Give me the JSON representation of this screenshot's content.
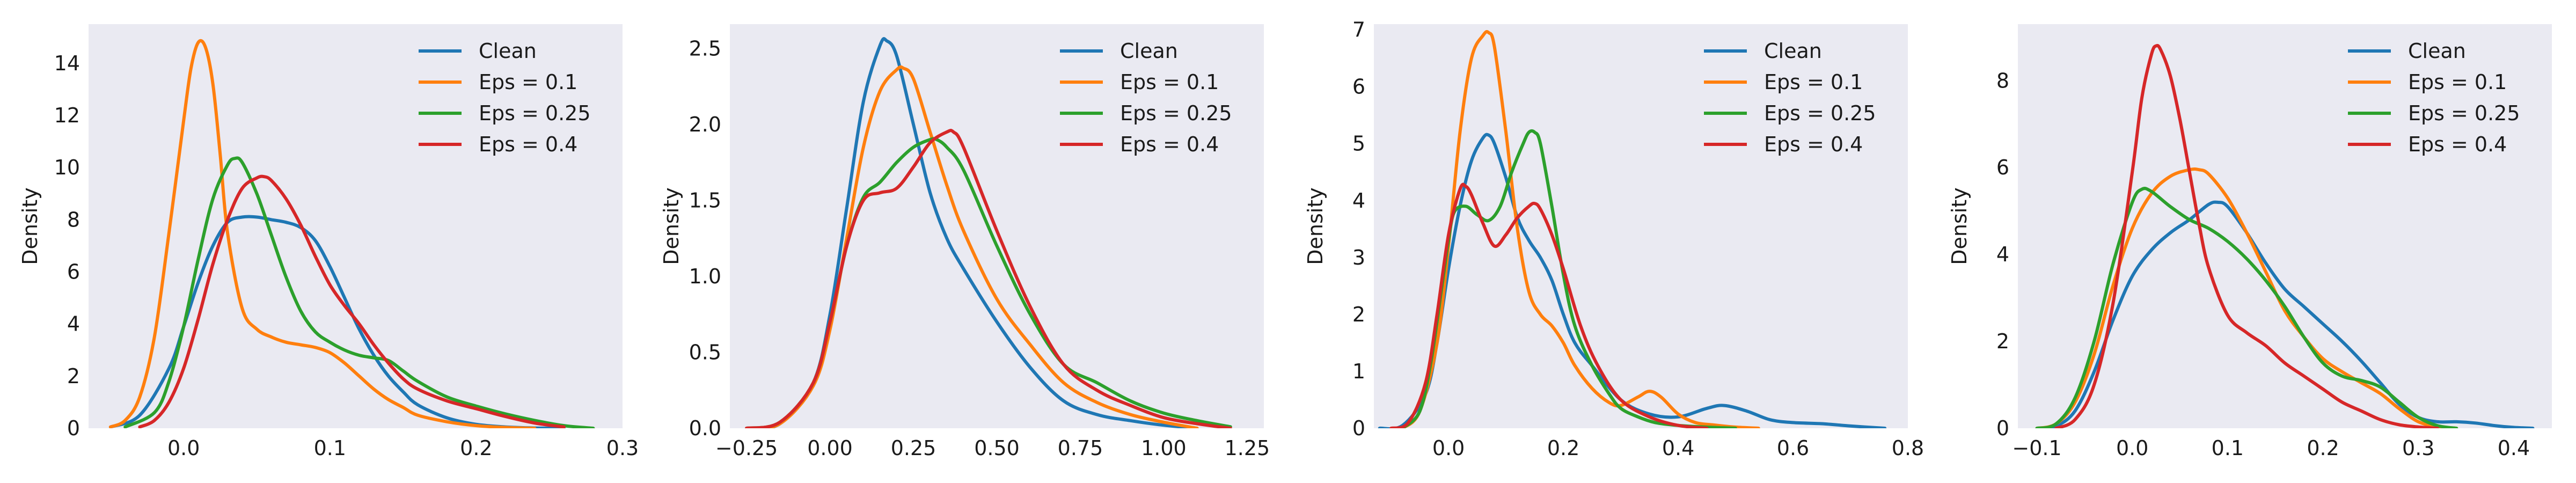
{
  "colors": {
    "Clean": "#1f77b4",
    "Eps = 0.1": "#ff7f0e",
    "Eps = 0.25": "#2ca02c",
    "Eps = 0.4": "#d62728",
    "plot_background": "#eaeaf2"
  },
  "chart_data": [
    {
      "type": "line",
      "ylabel": "Density",
      "xlim": [
        -0.065,
        0.3
      ],
      "ylim": [
        0,
        15.5
      ],
      "xticks": [
        0.0,
        0.1,
        0.2,
        0.3
      ],
      "xtick_labels": [
        "0.0",
        "0.1",
        "0.2",
        "0.3"
      ],
      "yticks": [
        0,
        2,
        4,
        6,
        8,
        10,
        12,
        14
      ],
      "ytick_labels": [
        "0",
        "2",
        "4",
        "6",
        "8",
        "10",
        "12",
        "14"
      ],
      "grid": false,
      "legend": "top-right",
      "series": [
        {
          "name": "Clean",
          "x": [
            -0.05,
            -0.03,
            -0.01,
            0.0,
            0.01,
            0.02,
            0.03,
            0.04,
            0.05,
            0.06,
            0.07,
            0.08,
            0.09,
            0.1,
            0.11,
            0.12,
            0.13,
            0.14,
            0.15,
            0.16,
            0.18,
            0.2,
            0.22,
            0.24,
            0.26
          ],
          "y": [
            0.05,
            0.5,
            2.3,
            3.9,
            5.6,
            7.0,
            7.9,
            8.1,
            8.1,
            8.0,
            7.9,
            7.7,
            7.2,
            6.2,
            5.0,
            3.8,
            2.8,
            2.0,
            1.4,
            0.9,
            0.4,
            0.15,
            0.05,
            0.01,
            0.0
          ]
        },
        {
          "name": "Eps = 0.1",
          "x": [
            -0.05,
            -0.04,
            -0.03,
            -0.02,
            -0.01,
            0.0,
            0.005,
            0.01,
            0.015,
            0.02,
            0.025,
            0.03,
            0.04,
            0.05,
            0.06,
            0.07,
            0.08,
            0.09,
            0.1,
            0.11,
            0.12,
            0.13,
            0.14,
            0.15,
            0.16,
            0.18,
            0.2,
            0.22,
            0.24
          ],
          "y": [
            0.05,
            0.3,
            1.2,
            3.5,
            7.5,
            11.8,
            13.8,
            14.8,
            14.6,
            13.2,
            10.5,
            7.5,
            4.6,
            3.8,
            3.5,
            3.3,
            3.2,
            3.1,
            2.9,
            2.5,
            2.0,
            1.5,
            1.1,
            0.8,
            0.5,
            0.25,
            0.1,
            0.03,
            0.0
          ]
        },
        {
          "name": "Eps = 0.25",
          "x": [
            -0.04,
            -0.02,
            -0.01,
            0.0,
            0.01,
            0.02,
            0.03,
            0.035,
            0.04,
            0.05,
            0.06,
            0.07,
            0.08,
            0.09,
            0.1,
            0.11,
            0.12,
            0.13,
            0.14,
            0.15,
            0.16,
            0.18,
            0.2,
            0.22,
            0.24,
            0.26,
            0.28
          ],
          "y": [
            0.05,
            0.6,
            1.8,
            3.9,
            6.5,
            8.8,
            10.1,
            10.35,
            10.2,
            9.0,
            7.4,
            5.8,
            4.5,
            3.7,
            3.3,
            3.0,
            2.8,
            2.7,
            2.6,
            2.2,
            1.8,
            1.2,
            0.85,
            0.55,
            0.3,
            0.1,
            0.0
          ]
        },
        {
          "name": "Eps = 0.4",
          "x": [
            -0.03,
            -0.02,
            -0.01,
            0.0,
            0.01,
            0.02,
            0.03,
            0.04,
            0.05,
            0.055,
            0.06,
            0.07,
            0.08,
            0.09,
            0.1,
            0.11,
            0.12,
            0.13,
            0.14,
            0.15,
            0.16,
            0.18,
            0.2,
            0.22,
            0.24,
            0.26
          ],
          "y": [
            0.05,
            0.3,
            1.0,
            2.3,
            4.2,
            6.3,
            8.0,
            9.2,
            9.6,
            9.65,
            9.5,
            8.8,
            7.8,
            6.6,
            5.5,
            4.7,
            4.0,
            3.2,
            2.5,
            1.9,
            1.5,
            1.05,
            0.75,
            0.45,
            0.2,
            0.05
          ]
        }
      ]
    },
    {
      "type": "line",
      "ylabel": "Density",
      "xlim": [
        -0.3,
        1.3
      ],
      "ylim": [
        0,
        2.66
      ],
      "xticks": [
        -0.25,
        0.0,
        0.25,
        0.5,
        0.75,
        1.0,
        1.25
      ],
      "xtick_labels": [
        "−0.25",
        "0.00",
        "0.25",
        "0.50",
        "0.75",
        "1.00",
        "1.25"
      ],
      "yticks": [
        0.0,
        0.5,
        1.0,
        1.5,
        2.0,
        2.5
      ],
      "ytick_labels": [
        "0.0",
        "0.5",
        "1.0",
        "1.5",
        "2.0",
        "2.5"
      ],
      "grid": false,
      "legend": "top-right",
      "series": [
        {
          "name": "Clean",
          "x": [
            -0.25,
            -0.15,
            -0.05,
            0.0,
            0.05,
            0.1,
            0.15,
            0.17,
            0.2,
            0.25,
            0.3,
            0.35,
            0.4,
            0.5,
            0.6,
            0.7,
            0.8,
            0.9,
            1.0,
            1.1
          ],
          "y": [
            0.0,
            0.03,
            0.3,
            0.75,
            1.45,
            2.15,
            2.52,
            2.55,
            2.45,
            2.0,
            1.55,
            1.25,
            1.05,
            0.7,
            0.4,
            0.18,
            0.09,
            0.05,
            0.02,
            0.0
          ]
        },
        {
          "name": "Eps = 0.1",
          "x": [
            -0.25,
            -0.15,
            -0.05,
            0.0,
            0.05,
            0.1,
            0.15,
            0.2,
            0.22,
            0.25,
            0.3,
            0.35,
            0.4,
            0.5,
            0.6,
            0.7,
            0.8,
            0.9,
            1.0,
            1.1
          ],
          "y": [
            0.0,
            0.03,
            0.28,
            0.65,
            1.25,
            1.85,
            2.22,
            2.36,
            2.37,
            2.3,
            1.95,
            1.6,
            1.3,
            0.85,
            0.55,
            0.3,
            0.17,
            0.09,
            0.04,
            0.0
          ]
        },
        {
          "name": "Eps = 0.25",
          "x": [
            -0.25,
            -0.15,
            -0.05,
            0.0,
            0.05,
            0.1,
            0.15,
            0.2,
            0.25,
            0.3,
            0.32,
            0.35,
            0.4,
            0.5,
            0.6,
            0.7,
            0.8,
            0.9,
            1.0,
            1.1,
            1.2
          ],
          "y": [
            0.0,
            0.04,
            0.3,
            0.7,
            1.2,
            1.52,
            1.62,
            1.75,
            1.85,
            1.9,
            1.9,
            1.85,
            1.7,
            1.2,
            0.75,
            0.42,
            0.3,
            0.18,
            0.1,
            0.05,
            0.01
          ]
        },
        {
          "name": "Eps = 0.4",
          "x": [
            -0.25,
            -0.15,
            -0.05,
            0.0,
            0.05,
            0.1,
            0.15,
            0.2,
            0.25,
            0.3,
            0.35,
            0.37,
            0.4,
            0.5,
            0.6,
            0.7,
            0.8,
            0.9,
            1.0,
            1.1,
            1.2
          ],
          "y": [
            0.0,
            0.04,
            0.3,
            0.7,
            1.2,
            1.5,
            1.55,
            1.58,
            1.72,
            1.88,
            1.95,
            1.95,
            1.85,
            1.3,
            0.8,
            0.42,
            0.25,
            0.15,
            0.07,
            0.03,
            0.0
          ]
        }
      ]
    },
    {
      "type": "line",
      "ylabel": "Density",
      "xlim": [
        -0.13,
        0.8
      ],
      "ylim": [
        0,
        7.1
      ],
      "xticks": [
        0.0,
        0.2,
        0.4,
        0.6,
        0.8
      ],
      "xtick_labels": [
        "0.0",
        "0.2",
        "0.4",
        "0.6",
        "0.8"
      ],
      "yticks": [
        0,
        1,
        2,
        3,
        4,
        5,
        6,
        7
      ],
      "ytick_labels": [
        "0",
        "1",
        "2",
        "3",
        "4",
        "5",
        "6",
        "7"
      ],
      "grid": false,
      "legend": "top-right",
      "series": [
        {
          "name": "Clean",
          "x": [
            -0.12,
            -0.08,
            -0.04,
            -0.02,
            0.0,
            0.02,
            0.04,
            0.06,
            0.07,
            0.08,
            0.1,
            0.12,
            0.14,
            0.16,
            0.18,
            0.2,
            0.22,
            0.25,
            0.3,
            0.35,
            0.4,
            0.45,
            0.48,
            0.52,
            0.56,
            0.6,
            0.65,
            0.7,
            0.76
          ],
          "y": [
            0.0,
            0.05,
            0.6,
            1.5,
            2.8,
            3.9,
            4.7,
            5.1,
            5.15,
            5.0,
            4.4,
            3.7,
            3.3,
            3.0,
            2.6,
            2.0,
            1.5,
            1.1,
            0.5,
            0.25,
            0.2,
            0.35,
            0.4,
            0.3,
            0.15,
            0.1,
            0.08,
            0.04,
            0.0
          ]
        },
        {
          "name": "Eps = 0.1",
          "x": [
            -0.08,
            -0.05,
            -0.02,
            0.0,
            0.02,
            0.04,
            0.06,
            0.07,
            0.08,
            0.1,
            0.12,
            0.14,
            0.16,
            0.18,
            0.2,
            0.22,
            0.25,
            0.28,
            0.3,
            0.33,
            0.35,
            0.37,
            0.4,
            0.43,
            0.46,
            0.5,
            0.54
          ],
          "y": [
            0.0,
            0.3,
            1.5,
            3.2,
            5.2,
            6.5,
            6.9,
            6.95,
            6.7,
            5.2,
            3.5,
            2.4,
            2.0,
            1.8,
            1.5,
            1.1,
            0.7,
            0.45,
            0.4,
            0.55,
            0.65,
            0.55,
            0.25,
            0.1,
            0.06,
            0.02,
            0.0
          ]
        },
        {
          "name": "Eps = 0.25",
          "x": [
            -0.08,
            -0.05,
            -0.03,
            -0.01,
            0.0,
            0.01,
            0.03,
            0.05,
            0.07,
            0.09,
            0.11,
            0.13,
            0.14,
            0.15,
            0.16,
            0.18,
            0.2,
            0.22,
            0.25,
            0.28,
            0.3,
            0.33,
            0.36,
            0.4,
            0.45,
            0.5
          ],
          "y": [
            0.0,
            0.3,
            1.2,
            2.6,
            3.3,
            3.8,
            3.9,
            3.75,
            3.65,
            3.9,
            4.5,
            5.0,
            5.2,
            5.2,
            5.0,
            3.9,
            2.7,
            1.8,
            1.1,
            0.6,
            0.35,
            0.2,
            0.1,
            0.05,
            0.02,
            0.0
          ]
        },
        {
          "name": "Eps = 0.4",
          "x": [
            -0.1,
            -0.07,
            -0.04,
            -0.02,
            0.0,
            0.02,
            0.03,
            0.04,
            0.06,
            0.08,
            0.1,
            0.12,
            0.14,
            0.15,
            0.16,
            0.18,
            0.2,
            0.23,
            0.26,
            0.3,
            0.35,
            0.4,
            0.45
          ],
          "y": [
            0.0,
            0.1,
            0.8,
            2.0,
            3.4,
            4.2,
            4.25,
            4.1,
            3.6,
            3.2,
            3.4,
            3.7,
            3.9,
            3.95,
            3.85,
            3.4,
            2.8,
            1.8,
            1.1,
            0.5,
            0.2,
            0.05,
            0.0
          ]
        }
      ]
    },
    {
      "type": "line",
      "ylabel": "Density",
      "xlim": [
        -0.12,
        0.44
      ],
      "ylim": [
        0,
        9.3
      ],
      "xticks": [
        -0.1,
        0.0,
        0.1,
        0.2,
        0.3,
        0.4
      ],
      "xtick_labels": [
        "−0.1",
        "0.0",
        "0.1",
        "0.2",
        "0.3",
        "0.4"
      ],
      "yticks": [
        0,
        2,
        4,
        6,
        8
      ],
      "ytick_labels": [
        "0",
        "2",
        "4",
        "6",
        "8"
      ],
      "grid": false,
      "legend": "top-right",
      "series": [
        {
          "name": "Clean",
          "x": [
            -0.1,
            -0.08,
            -0.06,
            -0.04,
            -0.02,
            0.0,
            0.02,
            0.04,
            0.06,
            0.08,
            0.09,
            0.1,
            0.12,
            0.14,
            0.16,
            0.18,
            0.2,
            0.22,
            0.24,
            0.26,
            0.28,
            0.3,
            0.32,
            0.34,
            0.36,
            0.38,
            0.4,
            0.42
          ],
          "y": [
            0.0,
            0.05,
            0.4,
            1.3,
            2.5,
            3.5,
            4.1,
            4.5,
            4.8,
            5.15,
            5.2,
            5.1,
            4.5,
            3.8,
            3.2,
            2.8,
            2.4,
            2.0,
            1.55,
            1.05,
            0.55,
            0.25,
            0.15,
            0.15,
            0.12,
            0.06,
            0.02,
            0.0
          ]
        },
        {
          "name": "Eps = 0.1",
          "x": [
            -0.1,
            -0.08,
            -0.06,
            -0.04,
            -0.02,
            0.0,
            0.02,
            0.04,
            0.06,
            0.07,
            0.08,
            0.1,
            0.12,
            0.14,
            0.16,
            0.18,
            0.2,
            0.22,
            0.24,
            0.26,
            0.28,
            0.3,
            0.32,
            0.34
          ],
          "y": [
            0.0,
            0.1,
            0.6,
            1.7,
            3.3,
            4.6,
            5.4,
            5.8,
            5.95,
            5.95,
            5.85,
            5.3,
            4.5,
            3.6,
            2.7,
            2.1,
            1.6,
            1.3,
            1.05,
            0.8,
            0.45,
            0.15,
            0.04,
            0.0
          ]
        },
        {
          "name": "Eps = 0.25",
          "x": [
            -0.1,
            -0.08,
            -0.06,
            -0.04,
            -0.02,
            0.0,
            0.01,
            0.02,
            0.04,
            0.06,
            0.08,
            0.1,
            0.12,
            0.14,
            0.16,
            0.18,
            0.2,
            0.22,
            0.24,
            0.26,
            0.28,
            0.3,
            0.32,
            0.34
          ],
          "y": [
            0.0,
            0.1,
            0.7,
            2.0,
            3.8,
            5.2,
            5.5,
            5.45,
            5.1,
            4.8,
            4.6,
            4.3,
            3.9,
            3.4,
            2.8,
            2.1,
            1.5,
            1.2,
            1.1,
            0.95,
            0.6,
            0.25,
            0.06,
            0.0
          ]
        },
        {
          "name": "Eps = 0.4",
          "x": [
            -0.08,
            -0.06,
            -0.04,
            -0.02,
            0.0,
            0.01,
            0.02,
            0.025,
            0.03,
            0.04,
            0.05,
            0.06,
            0.07,
            0.08,
            0.1,
            0.12,
            0.14,
            0.16,
            0.18,
            0.2,
            0.22,
            0.24,
            0.26,
            0.28,
            0.3,
            0.32
          ],
          "y": [
            0.0,
            0.2,
            1.0,
            2.9,
            5.9,
            7.6,
            8.6,
            8.8,
            8.7,
            8.1,
            7.1,
            5.9,
            4.7,
            3.7,
            2.6,
            2.2,
            1.9,
            1.5,
            1.2,
            0.9,
            0.6,
            0.4,
            0.2,
            0.08,
            0.03,
            0.0
          ]
        }
      ]
    }
  ]
}
